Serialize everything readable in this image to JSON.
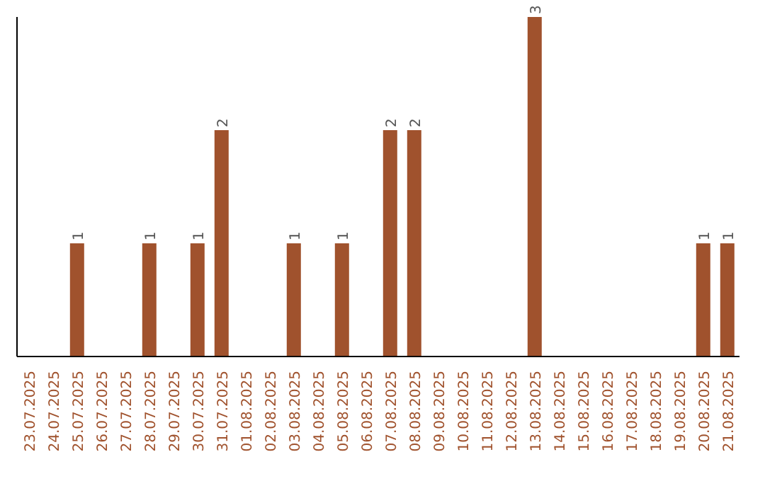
{
  "chart_data": {
    "type": "bar",
    "categories": [
      "23.07.2025",
      "24.07.2025",
      "25.07.2025",
      "26.07.2025",
      "27.07.2025",
      "28.07.2025",
      "29.07.2025",
      "30.07.2025",
      "31.07.2025",
      "01.08.2025",
      "02.08.2025",
      "03.08.2025",
      "04.08.2025",
      "05.08.2025",
      "06.08.2025",
      "07.08.2025",
      "08.08.2025",
      "09.08.2025",
      "10.08.2025",
      "11.08.2025",
      "12.08.2025",
      "13.08.2025",
      "14.08.2025",
      "15.08.2025",
      "16.08.2025",
      "17.08.2025",
      "18.08.2025",
      "19.08.2025",
      "20.08.2025",
      "21.08.2025"
    ],
    "values": [
      0,
      0,
      1,
      0,
      0,
      1,
      0,
      1,
      2,
      0,
      0,
      1,
      0,
      1,
      0,
      2,
      2,
      0,
      0,
      0,
      0,
      3,
      0,
      0,
      0,
      0,
      0,
      0,
      1,
      1
    ],
    "value_labels": [
      null,
      null,
      "1",
      null,
      null,
      "1",
      null,
      "1",
      "2",
      null,
      null,
      "1",
      null,
      "1",
      null,
      "2",
      "2",
      null,
      null,
      null,
      null,
      "3",
      null,
      null,
      null,
      null,
      null,
      null,
      "1",
      "1"
    ],
    "color": "#a0522d",
    "ylim": [
      0,
      3
    ],
    "tick_labels": "x",
    "grid": false,
    "legend": false
  }
}
